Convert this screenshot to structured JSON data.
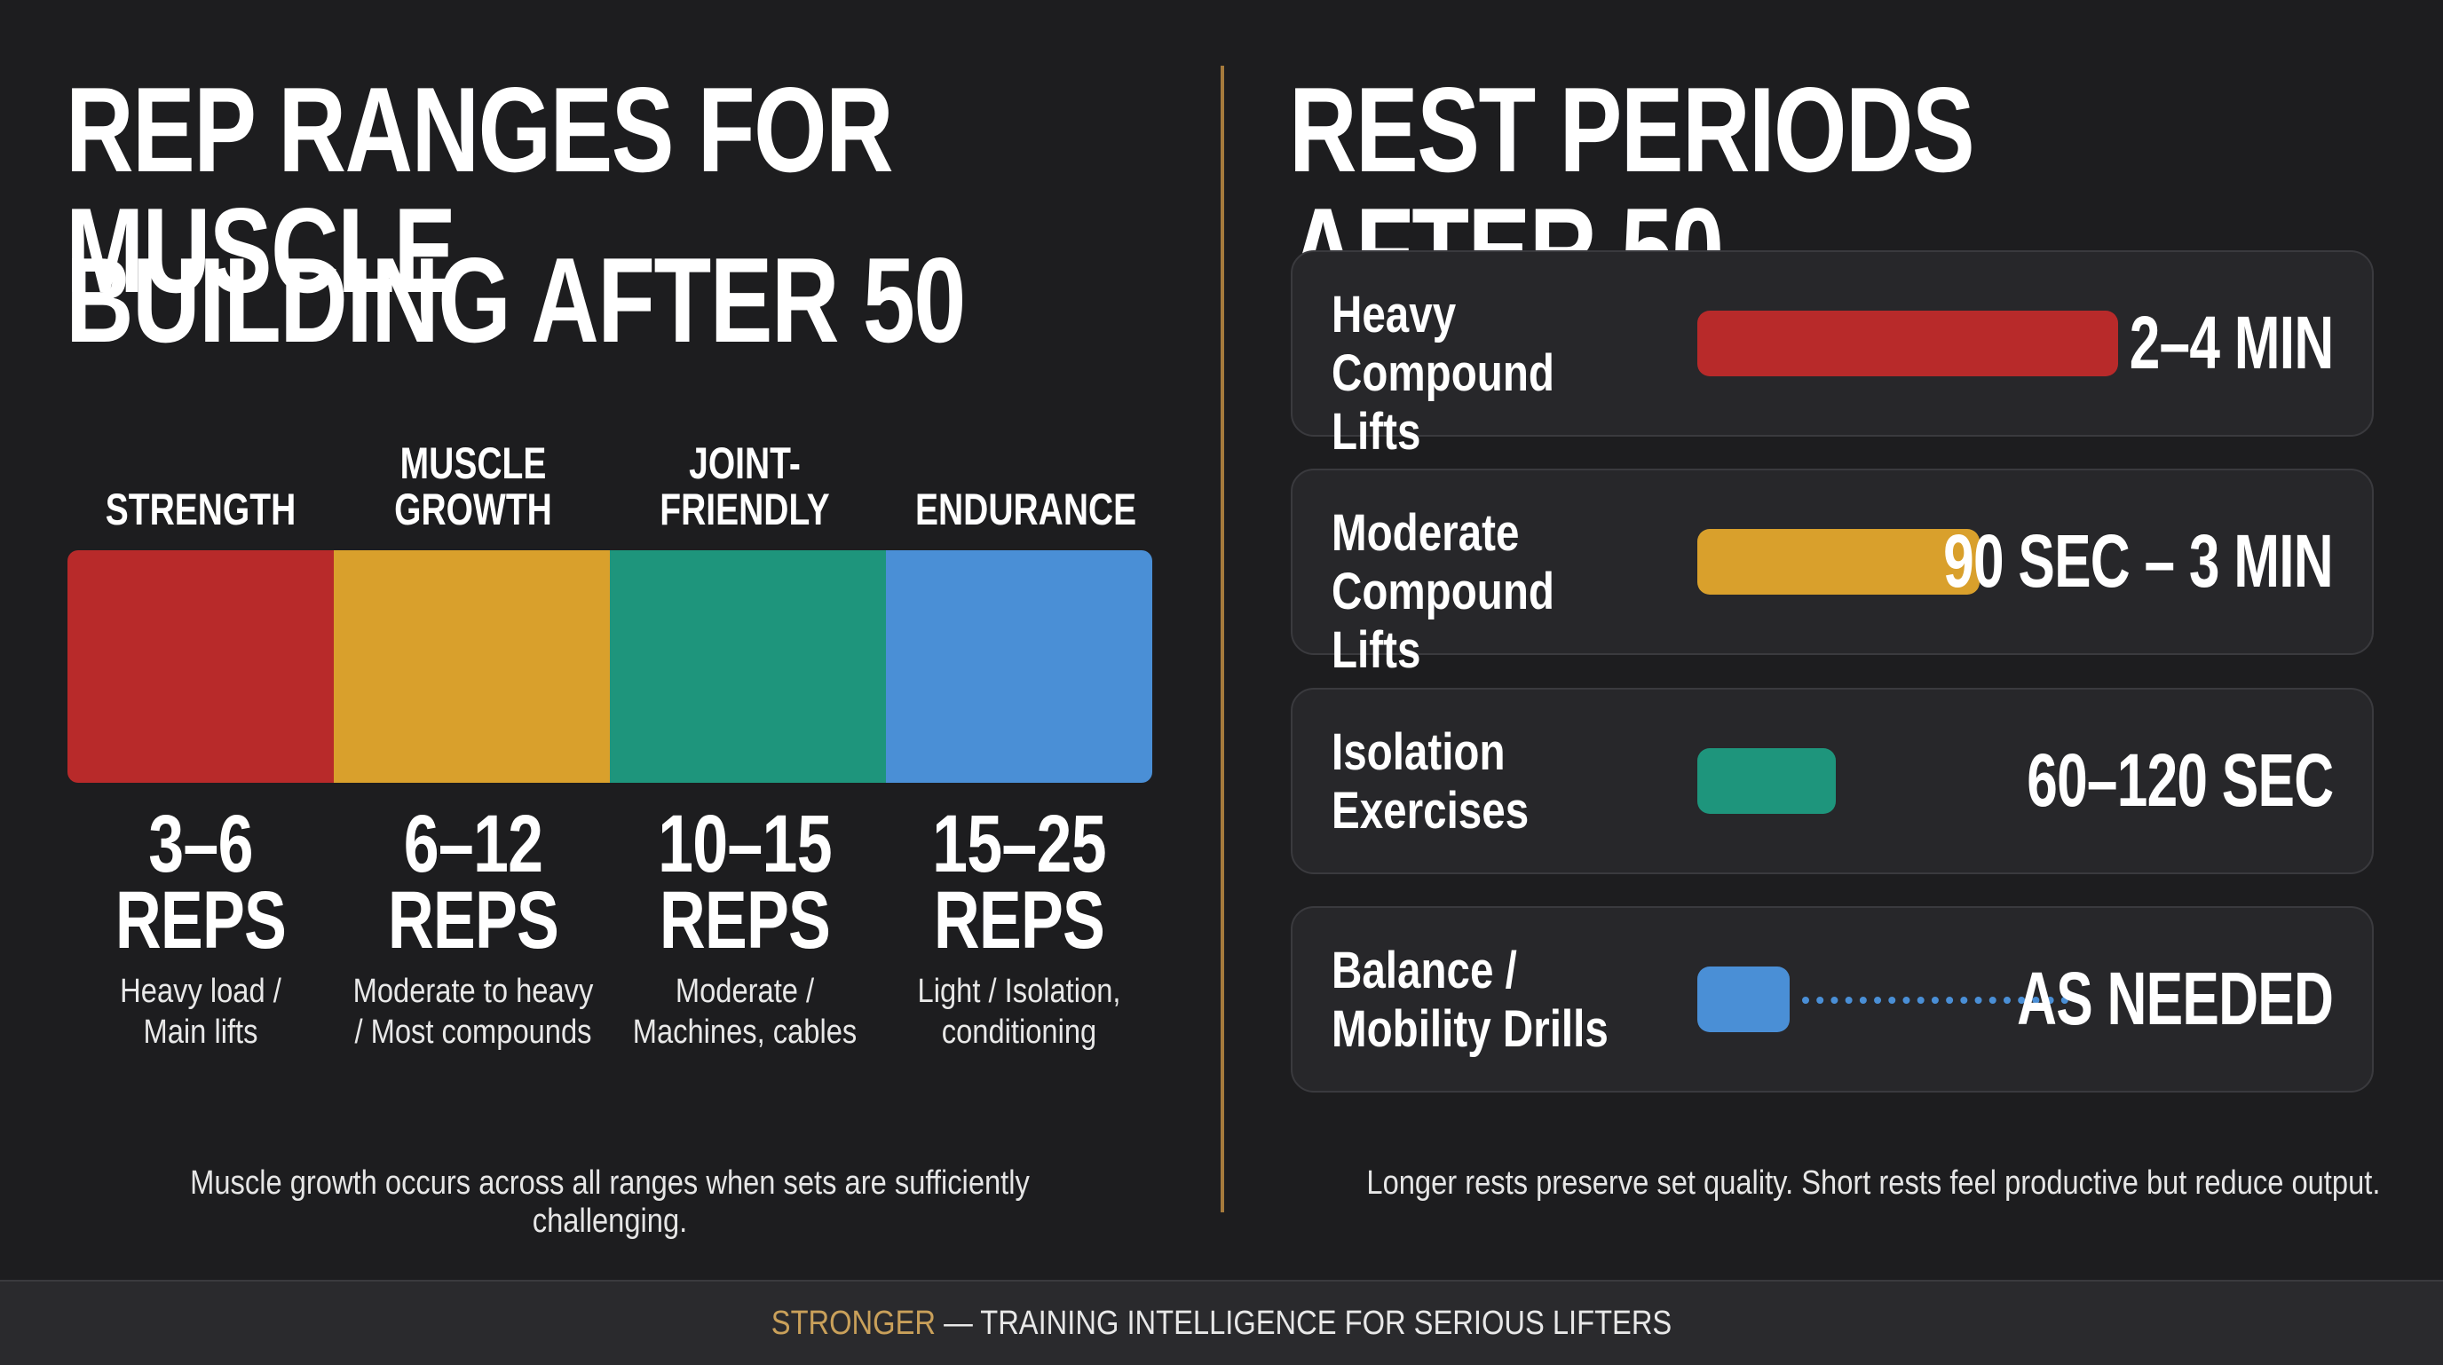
{
  "left": {
    "title_lines": [
      "REP RANGES FOR MUSCLE",
      "BUILDING AFTER 50"
    ],
    "categories": [
      {
        "label_lines": [
          "STRENGTH"
        ],
        "color": "#b82a2a",
        "reps_line1": "3–6",
        "reps_line2": "REPS",
        "desc_lines": [
          "Heavy load /",
          "Main lifts"
        ]
      },
      {
        "label_lines": [
          "MUSCLE",
          "GROWTH"
        ],
        "color": "#d9a02c",
        "reps_line1": "6–12",
        "reps_line2": "REPS",
        "desc_lines": [
          "Moderate to heavy",
          "/ Most compounds"
        ]
      },
      {
        "label_lines": [
          "JOINT-FRIENDLY"
        ],
        "color": "#1e957c",
        "reps_line1": "10–15",
        "reps_line2": "REPS",
        "desc_lines": [
          "Moderate /",
          "Machines, cables"
        ]
      },
      {
        "label_lines": [
          "ENDURANCE"
        ],
        "color": "#4a8fd6",
        "reps_line1": "15–25",
        "reps_line2": "REPS",
        "desc_lines": [
          "Light / Isolation,",
          "conditioning"
        ]
      }
    ],
    "note": "Muscle growth occurs across all ranges when sets are sufficiently challenging."
  },
  "right": {
    "title": "REST PERIODS AFTER 50",
    "rows": [
      {
        "name_lines": [
          "Heavy",
          "Compound Lifts"
        ],
        "color": "#b82a2a",
        "time": "2–4 MIN",
        "bar_fraction": 1.0,
        "dotted": false
      },
      {
        "name_lines": [
          "Moderate",
          "Compound Lifts"
        ],
        "color": "#d9a02c",
        "time": "90 SEC – 3 MIN",
        "bar_fraction": 0.67,
        "dotted": false
      },
      {
        "name_lines": [
          "Isolation",
          "Exercises"
        ],
        "color": "#1e957c",
        "time": "60–120 SEC",
        "bar_fraction": 0.33,
        "dotted": false
      },
      {
        "name_lines": [
          "Balance /",
          "Mobility Drills"
        ],
        "color": "#4a8fd6",
        "time": "AS NEEDED",
        "bar_fraction": 0.22,
        "dotted": true
      }
    ],
    "note": "Longer rests preserve set quality. Short rests feel productive but reduce output."
  },
  "footer": {
    "brand": "STRONGER",
    "tagline": " — TRAINING INTELLIGENCE FOR SERIOUS LIFTERS"
  }
}
